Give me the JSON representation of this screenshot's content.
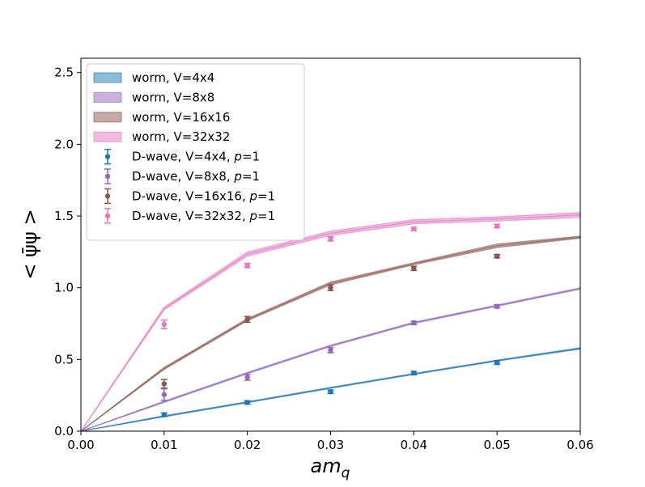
{
  "chart_data": {
    "type": "line",
    "title": "",
    "xlabel": "am_q",
    "xlabel_main": "am",
    "xlabel_sub": "q",
    "ylabel": "< ψ̄ψ >",
    "xlim": [
      0.0,
      0.06
    ],
    "ylim": [
      0.0,
      2.6
    ],
    "x_ticks": [
      "0.00",
      "0.01",
      "0.02",
      "0.03",
      "0.04",
      "0.05",
      "0.06"
    ],
    "y_ticks": [
      "0.0",
      "0.5",
      "1.0",
      "1.5",
      "2.0",
      "2.5"
    ],
    "grid": false,
    "legend_position": "top-left",
    "colors": {
      "worm_4": "#1f77b4",
      "worm_8": "#9467bd",
      "worm_16": "#8c564b",
      "worm_32": "#e377c2"
    },
    "worm_series": [
      {
        "name": "worm, V=4x4",
        "color": "#1f77b4",
        "x": [
          0.0,
          0.01,
          0.02,
          0.03,
          0.04,
          0.05,
          0.06
        ],
        "low": [
          0.0,
          0.1,
          0.198,
          0.298,
          0.395,
          0.488,
          0.572
        ],
        "high": [
          0.0,
          0.108,
          0.206,
          0.306,
          0.403,
          0.496,
          0.582
        ]
      },
      {
        "name": "worm, V=8x8",
        "color": "#9467bd",
        "x": [
          0.0,
          0.01,
          0.02,
          0.03,
          0.04,
          0.05,
          0.06
        ],
        "low": [
          0.0,
          0.2,
          0.4,
          0.59,
          0.75,
          0.87,
          0.99
        ],
        "high": [
          0.0,
          0.21,
          0.41,
          0.6,
          0.76,
          0.88,
          1.0
        ]
      },
      {
        "name": "worm, V=16x16",
        "color": "#8c564b",
        "x": [
          0.0,
          0.01,
          0.02,
          0.03,
          0.04,
          0.05,
          0.06
        ],
        "low": [
          0.0,
          0.43,
          0.77,
          1.02,
          1.16,
          1.28,
          1.345
        ],
        "high": [
          0.0,
          0.445,
          0.785,
          1.04,
          1.175,
          1.305,
          1.36
        ]
      },
      {
        "name": "worm, V=32x32",
        "color": "#e377c2",
        "x": [
          0.0,
          0.01,
          0.02,
          0.03,
          0.04,
          0.05,
          0.06
        ],
        "low": [
          0.0,
          0.845,
          1.22,
          1.365,
          1.445,
          1.465,
          1.49
        ],
        "high": [
          0.0,
          0.865,
          1.25,
          1.395,
          1.475,
          1.495,
          1.525
        ]
      }
    ],
    "dwave_series": [
      {
        "name": "D-wave, V=4x4, ",
        "p_label": "p",
        "p_value": "=1",
        "color": "#1f77b4",
        "x": [
          0.01,
          0.02,
          0.03,
          0.04,
          0.05
        ],
        "y": [
          0.115,
          0.2,
          0.275,
          0.405,
          0.478
        ],
        "err": [
          0.012,
          0.012,
          0.012,
          0.012,
          0.012
        ]
      },
      {
        "name": "D-wave, V=8x8, ",
        "p_label": "p",
        "p_value": "=1",
        "color": "#9467bd",
        "x": [
          0.01,
          0.02,
          0.03,
          0.04,
          0.05
        ],
        "y": [
          0.255,
          0.375,
          0.565,
          0.755,
          0.87
        ],
        "err": [
          0.04,
          0.02,
          0.018,
          0.012,
          0.012
        ]
      },
      {
        "name": "D-wave, V=16x16, ",
        "p_label": "p",
        "p_value": "=1",
        "color": "#8c564b",
        "x": [
          0.01,
          0.02,
          0.03,
          0.04,
          0.05
        ],
        "y": [
          0.33,
          0.78,
          1.0,
          1.135,
          1.22
        ],
        "err": [
          0.03,
          0.02,
          0.02,
          0.015,
          0.012
        ]
      },
      {
        "name": "D-wave, V=32x32, ",
        "p_label": "p",
        "p_value": "=1",
        "color": "#e377c2",
        "x": [
          0.01,
          0.02,
          0.03,
          0.04,
          0.05
        ],
        "y": [
          0.745,
          1.155,
          1.34,
          1.41,
          1.43
        ],
        "err": [
          0.03,
          0.015,
          0.015,
          0.012,
          0.012
        ]
      }
    ]
  }
}
